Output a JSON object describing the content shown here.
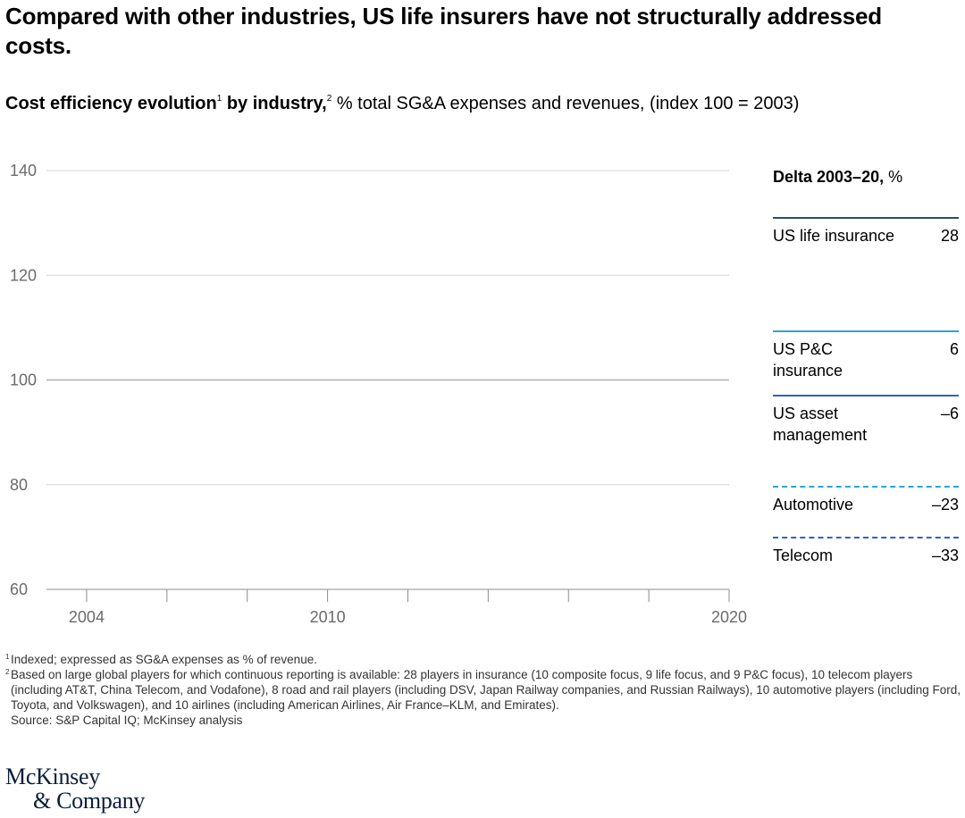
{
  "title": "Compared with other industries, US life insurers have not structurally addressed costs.",
  "subtitle": {
    "bold1": "Cost efficiency evolution",
    "sup1": "1",
    "bold2": " by industry,",
    "sup2": "2",
    "rest": " % total SG&A expenses and revenues, (index 100 = 2003)"
  },
  "chart_data": {
    "type": "line",
    "title": "Cost efficiency evolution by industry",
    "ylabel": "% total SG&A expenses and revenues, (index 100 = 2003)",
    "xlabel": "",
    "ylim": [
      60,
      140
    ],
    "y_ticks": [
      "60",
      "80",
      "100",
      "120",
      "140"
    ],
    "xlim": [
      2003,
      2020
    ],
    "x_tick_labels": [
      "2004",
      "2010",
      "2020"
    ],
    "minor_x_ticks": [
      2004,
      2006,
      2008,
      2010,
      2012,
      2014,
      2016,
      2018,
      2020
    ],
    "grid": true,
    "series": [],
    "legend": {
      "header_bold": "Delta 2003–20,",
      "header_rest": " %",
      "items": [
        {
          "name": "US life insurance",
          "delta": "28",
          "color": "#2f4d63",
          "dashed": false
        },
        {
          "name": "US P&C insurance",
          "delta": "6",
          "color": "#2aa4d6",
          "dashed": false
        },
        {
          "name": "US asset management",
          "delta": "–6",
          "color": "#2d5fd6",
          "dashed": false
        },
        {
          "name": "Automotive",
          "delta": "–23",
          "color": "#2aa4d6",
          "dashed": true
        },
        {
          "name": "Telecom",
          "delta": "–33",
          "color": "#2d5fd6",
          "dashed": true
        }
      ]
    }
  },
  "footnotes": [
    {
      "mark": "1",
      "text": "Indexed; expressed as SG&A expenses as % of revenue."
    },
    {
      "mark": "2",
      "text": "Based on large global players for which continuous reporting is available: 28 players in insurance (10 composite focus, 9 life focus, and 9 P&C focus), 10 telecom players (including AT&T, China Telecom, and Vodafone), 8 road and rail players (including DSV, Japan Railway companies, and Russian Railways), 10 automotive players (including Ford, Toyota, and Volkswagen), and 10 airlines (including American Airlines, Air France–KLM, and Emirates)."
    }
  ],
  "source": "Source: S&P Capital IQ; McKinsey analysis",
  "logo": {
    "line1": "McKinsey",
    "line2": "& Company"
  }
}
